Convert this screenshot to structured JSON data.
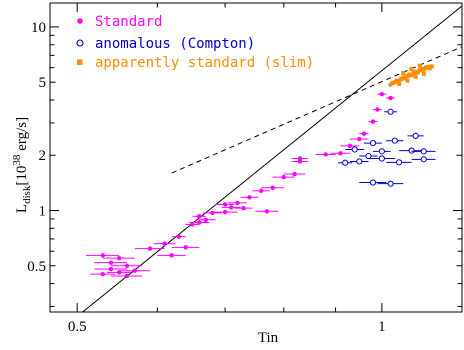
{
  "chart_data": {
    "type": "scatter",
    "xlabel": "Tin",
    "ylabel_main": "L",
    "ylabel_sub": "disk",
    "ylabel_rest": "[10",
    "ylabel_exp": "38",
    "ylabel_unit": " erg/s]",
    "x_scale": "log",
    "y_scale": "log",
    "xlim": [
      0.47,
      1.2
    ],
    "ylim": [
      0.28,
      13.5
    ],
    "x_ticks": [
      {
        "v": 0.5,
        "label": "0.5"
      },
      {
        "v": 1,
        "label": "1"
      }
    ],
    "y_ticks": [
      {
        "v": 0.5,
        "label": "0.5"
      },
      {
        "v": 1,
        "label": "1"
      },
      {
        "v": 2,
        "label": "2"
      },
      {
        "v": 5,
        "label": "5"
      },
      {
        "v": 10,
        "label": "10"
      }
    ],
    "grid": false,
    "legend_position": "top-left",
    "series": [
      {
        "name": "Standard",
        "color": "#ff00ff",
        "marker": "filled-circle",
        "points": [
          {
            "x": 0.53,
            "y": 0.57,
            "xerr": 0.02
          },
          {
            "x": 0.55,
            "y": 0.55,
            "xerr": 0.02
          },
          {
            "x": 0.54,
            "y": 0.52,
            "xerr": 0.02
          },
          {
            "x": 0.56,
            "y": 0.5,
            "xerr": 0.02
          },
          {
            "x": 0.54,
            "y": 0.48,
            "xerr": 0.02
          },
          {
            "x": 0.55,
            "y": 0.46,
            "xerr": 0.015
          },
          {
            "x": 0.57,
            "y": 0.47,
            "xerr": 0.02
          },
          {
            "x": 0.56,
            "y": 0.44,
            "xerr": 0.02
          },
          {
            "x": 0.53,
            "y": 0.45,
            "xerr": 0.015
          },
          {
            "x": 0.59,
            "y": 0.62,
            "xerr": 0.02
          },
          {
            "x": 0.62,
            "y": 0.57,
            "xerr": 0.02
          },
          {
            "x": 0.64,
            "y": 0.63,
            "xerr": 0.02
          },
          {
            "x": 0.61,
            "y": 0.66,
            "xerr": 0.015
          },
          {
            "x": 0.63,
            "y": 0.72,
            "xerr": 0.01
          },
          {
            "x": 0.65,
            "y": 0.84,
            "xerr": 0.01
          },
          {
            "x": 0.66,
            "y": 0.86,
            "xerr": 0.015
          },
          {
            "x": 0.67,
            "y": 0.89,
            "xerr": 0.015
          },
          {
            "x": 0.66,
            "y": 0.93,
            "xerr": 0.01
          },
          {
            "x": 0.68,
            "y": 0.97,
            "xerr": 0.015
          },
          {
            "x": 0.7,
            "y": 0.98,
            "xerr": 0.02
          },
          {
            "x": 0.71,
            "y": 1.04,
            "xerr": 0.015
          },
          {
            "x": 0.73,
            "y": 1.03,
            "xerr": 0.015
          },
          {
            "x": 0.7,
            "y": 1.08,
            "xerr": 0.015
          },
          {
            "x": 0.72,
            "y": 1.1,
            "xerr": 0.015
          },
          {
            "x": 0.74,
            "y": 1.18,
            "xerr": 0.015
          },
          {
            "x": 0.77,
            "y": 0.99,
            "xerr": 0.02
          },
          {
            "x": 0.76,
            "y": 1.28,
            "xerr": 0.015
          },
          {
            "x": 0.78,
            "y": 1.33,
            "xerr": 0.02
          },
          {
            "x": 0.8,
            "y": 1.52,
            "xerr": 0.02
          },
          {
            "x": 0.82,
            "y": 1.58,
            "xerr": 0.02
          },
          {
            "x": 0.83,
            "y": 1.85,
            "xerr": 0.015
          },
          {
            "x": 0.83,
            "y": 1.92,
            "xerr": 0.015
          },
          {
            "x": 0.88,
            "y": 2.02,
            "xerr": 0.02
          },
          {
            "x": 0.91,
            "y": 2.05,
            "xerr": 0.02
          },
          {
            "x": 0.93,
            "y": 2.25,
            "xerr": 0.02
          },
          {
            "x": 0.95,
            "y": 2.45,
            "xerr": 0.02
          },
          {
            "x": 0.96,
            "y": 2.62,
            "xerr": 0.01
          },
          {
            "x": 0.98,
            "y": 3.05,
            "xerr": 0.01
          },
          {
            "x": 0.99,
            "y": 3.55,
            "xerr": 0.01
          },
          {
            "x": 1.0,
            "y": 4.3,
            "xerr": 0.01
          },
          {
            "x": 1.02,
            "y": 4.1,
            "xerr": 0.01
          }
        ]
      },
      {
        "name": "anomalous (Compton)",
        "color": "#0000cc",
        "marker": "open-circle",
        "points": [
          {
            "x": 1.02,
            "y": 3.45,
            "xerr": 0.015
          },
          {
            "x": 1.08,
            "y": 2.55,
            "xerr": 0.02
          },
          {
            "x": 1.03,
            "y": 2.4,
            "xerr": 0.02
          },
          {
            "x": 0.98,
            "y": 2.33,
            "xerr": 0.02
          },
          {
            "x": 0.94,
            "y": 2.15,
            "xerr": 0.02
          },
          {
            "x": 1.0,
            "y": 2.1,
            "xerr": 0.02
          },
          {
            "x": 1.07,
            "y": 2.12,
            "xerr": 0.03
          },
          {
            "x": 1.1,
            "y": 2.1,
            "xerr": 0.03
          },
          {
            "x": 0.97,
            "y": 1.98,
            "xerr": 0.02
          },
          {
            "x": 1.0,
            "y": 1.92,
            "xerr": 0.03
          },
          {
            "x": 0.95,
            "y": 1.85,
            "xerr": 0.02
          },
          {
            "x": 0.92,
            "y": 1.82,
            "xerr": 0.015
          },
          {
            "x": 1.04,
            "y": 1.83,
            "xerr": 0.03
          },
          {
            "x": 1.1,
            "y": 1.9,
            "xerr": 0.03
          },
          {
            "x": 0.98,
            "y": 1.42,
            "xerr": 0.03
          },
          {
            "x": 1.02,
            "y": 1.4,
            "xerr": 0.03
          }
        ]
      },
      {
        "name": "apparently standard (slim)",
        "color": "#ff8c00",
        "marker": "filled-square",
        "points": [
          {
            "x": 1.02,
            "y": 4.85
          },
          {
            "x": 1.025,
            "y": 4.95
          },
          {
            "x": 1.03,
            "y": 5.0
          },
          {
            "x": 1.035,
            "y": 5.1
          },
          {
            "x": 1.04,
            "y": 5.05
          },
          {
            "x": 1.045,
            "y": 5.2
          },
          {
            "x": 1.05,
            "y": 5.3
          },
          {
            "x": 1.055,
            "y": 5.25
          },
          {
            "x": 1.06,
            "y": 5.4
          },
          {
            "x": 1.065,
            "y": 5.5
          },
          {
            "x": 1.07,
            "y": 5.45
          },
          {
            "x": 1.075,
            "y": 5.6
          },
          {
            "x": 1.08,
            "y": 5.7
          },
          {
            "x": 1.085,
            "y": 5.65
          },
          {
            "x": 1.09,
            "y": 5.8
          },
          {
            "x": 1.095,
            "y": 5.9
          },
          {
            "x": 1.1,
            "y": 5.85
          },
          {
            "x": 1.105,
            "y": 6.0
          },
          {
            "x": 1.11,
            "y": 6.05
          },
          {
            "x": 1.115,
            "y": 5.95
          },
          {
            "x": 1.12,
            "y": 6.1
          },
          {
            "x": 1.05,
            "y": 5.6
          },
          {
            "x": 1.07,
            "y": 5.9
          },
          {
            "x": 1.09,
            "y": 6.15
          },
          {
            "x": 1.04,
            "y": 4.9
          },
          {
            "x": 1.1,
            "y": 5.55
          },
          {
            "x": 1.08,
            "y": 5.35
          },
          {
            "x": 1.06,
            "y": 5.1
          }
        ]
      }
    ],
    "lines": [
      {
        "style": "solid",
        "x": [
          0.5,
          1.2
        ],
        "y": [
          0.265,
          13.0
        ]
      },
      {
        "style": "dashed",
        "x": [
          0.62,
          1.2
        ],
        "y": [
          1.6,
          7.8
        ]
      }
    ]
  }
}
